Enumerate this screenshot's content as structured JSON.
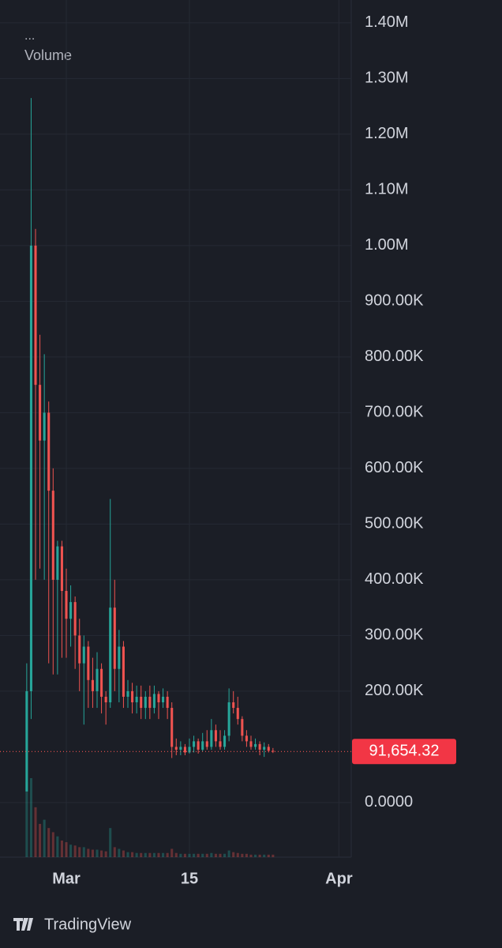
{
  "chart_data": {
    "type": "candlestick",
    "legend_dots": "...",
    "legend_label": "Volume",
    "up_color": "#26a69a",
    "down_color": "#ef5350",
    "x": [
      -4.5,
      -4,
      -3.5,
      -3,
      -2.5,
      -2,
      -1.5,
      -1,
      -0.5,
      0,
      0.5,
      1,
      1.5,
      2,
      2.5,
      3,
      3.5,
      4,
      4.5,
      5,
      5.5,
      6,
      6.5,
      7,
      7.5,
      8,
      8.5,
      9,
      9.5,
      10,
      10.5,
      11,
      11.5,
      12,
      12.5,
      13,
      13.5,
      14,
      14.5,
      15,
      15.5,
      16,
      16.5,
      17,
      17.5,
      18,
      18.5,
      19,
      19.5,
      20,
      20.5,
      21,
      21.5,
      22,
      22.5,
      23,
      23.5
    ],
    "open": [
      20000,
      200000,
      1000000,
      750000,
      650000,
      700000,
      560000,
      400000,
      460000,
      380000,
      330000,
      360000,
      300000,
      250000,
      280000,
      220000,
      200000,
      240000,
      190000,
      180000,
      350000,
      240000,
      280000,
      190000,
      200000,
      180000,
      190000,
      170000,
      190000,
      170000,
      195000,
      180000,
      190000,
      170000,
      100000,
      95000,
      100000,
      90000,
      100000,
      110000,
      95000,
      110000,
      100000,
      130000,
      110000,
      100000,
      120000,
      180000,
      170000,
      150000,
      120000,
      110000,
      100000,
      105000,
      95000,
      100000,
      93000
    ],
    "high": [
      250000,
      1265000,
      1030000,
      840000,
      805000,
      720000,
      600000,
      470000,
      470000,
      420000,
      390000,
      370000,
      330000,
      300000,
      290000,
      260000,
      270000,
      250000,
      200000,
      545000,
      400000,
      310000,
      290000,
      220000,
      215000,
      210000,
      210000,
      200000,
      210000,
      210000,
      200000,
      205000,
      200000,
      180000,
      115000,
      110000,
      105000,
      115000,
      120000,
      115000,
      125000,
      130000,
      150000,
      140000,
      130000,
      130000,
      205000,
      200000,
      190000,
      155000,
      130000,
      120000,
      115000,
      110000,
      108000,
      105000,
      98000
    ],
    "low": [
      20000,
      150000,
      400000,
      420000,
      400000,
      250000,
      230000,
      230000,
      260000,
      260000,
      280000,
      240000,
      200000,
      140000,
      170000,
      170000,
      170000,
      160000,
      140000,
      170000,
      200000,
      180000,
      170000,
      170000,
      160000,
      160000,
      150000,
      150000,
      150000,
      160000,
      150000,
      170000,
      150000,
      80000,
      85000,
      85000,
      85000,
      88000,
      90000,
      88000,
      92000,
      95000,
      95000,
      100000,
      95000,
      95000,
      110000,
      160000,
      140000,
      110000,
      100000,
      95000,
      95000,
      85000,
      82000,
      90000,
      89000
    ],
    "close": [
      200000,
      1000000,
      750000,
      650000,
      700000,
      560000,
      400000,
      460000,
      380000,
      330000,
      360000,
      300000,
      250000,
      280000,
      220000,
      200000,
      240000,
      190000,
      180000,
      350000,
      240000,
      280000,
      190000,
      200000,
      180000,
      190000,
      170000,
      190000,
      170000,
      195000,
      180000,
      190000,
      170000,
      100000,
      95000,
      100000,
      90000,
      100000,
      110000,
      95000,
      110000,
      100000,
      130000,
      110000,
      100000,
      120000,
      180000,
      170000,
      150000,
      120000,
      110000,
      100000,
      105000,
      95000,
      100000,
      93000,
      91654.32
    ],
    "volume": [
      90,
      95,
      60,
      40,
      45,
      35,
      30,
      25,
      20,
      18,
      15,
      14,
      12,
      12,
      10,
      9,
      9,
      8,
      7,
      35,
      12,
      10,
      8,
      6,
      6,
      5,
      5,
      5,
      5,
      5,
      5,
      5,
      5,
      10,
      5,
      4,
      4,
      4,
      4,
      4,
      4,
      4,
      5,
      4,
      4,
      4,
      8,
      6,
      5,
      4,
      4,
      3,
      3,
      3,
      3,
      3,
      3
    ],
    "ylim": [
      -98000,
      1441000
    ],
    "yticks": [
      {
        "value": 0,
        "label": "0.0000"
      },
      {
        "value": 200000,
        "label": "200.00K"
      },
      {
        "value": 300000,
        "label": "300.00K"
      },
      {
        "value": 400000,
        "label": "400.00K"
      },
      {
        "value": 500000,
        "label": "500.00K"
      },
      {
        "value": 600000,
        "label": "600.00K"
      },
      {
        "value": 700000,
        "label": "700.00K"
      },
      {
        "value": 800000,
        "label": "800.00K"
      },
      {
        "value": 900000,
        "label": "900.00K"
      },
      {
        "value": 1000000,
        "label": "1.00M"
      },
      {
        "value": 1100000,
        "label": "1.10M"
      },
      {
        "value": 1200000,
        "label": "1.20M"
      },
      {
        "value": 1300000,
        "label": "1.30M"
      },
      {
        "value": 1400000,
        "label": "1.40M"
      }
    ],
    "xlim": [
      -7.54,
      32.4
    ],
    "xticks": [
      {
        "value": 0,
        "label": "Mar"
      },
      {
        "value": 14,
        "label": "15"
      },
      {
        "value": 31,
        "label": "Apr"
      }
    ],
    "grid": true,
    "last_price": {
      "value": 91654.32,
      "label": "91,654.32"
    },
    "footer": "TradingView"
  }
}
